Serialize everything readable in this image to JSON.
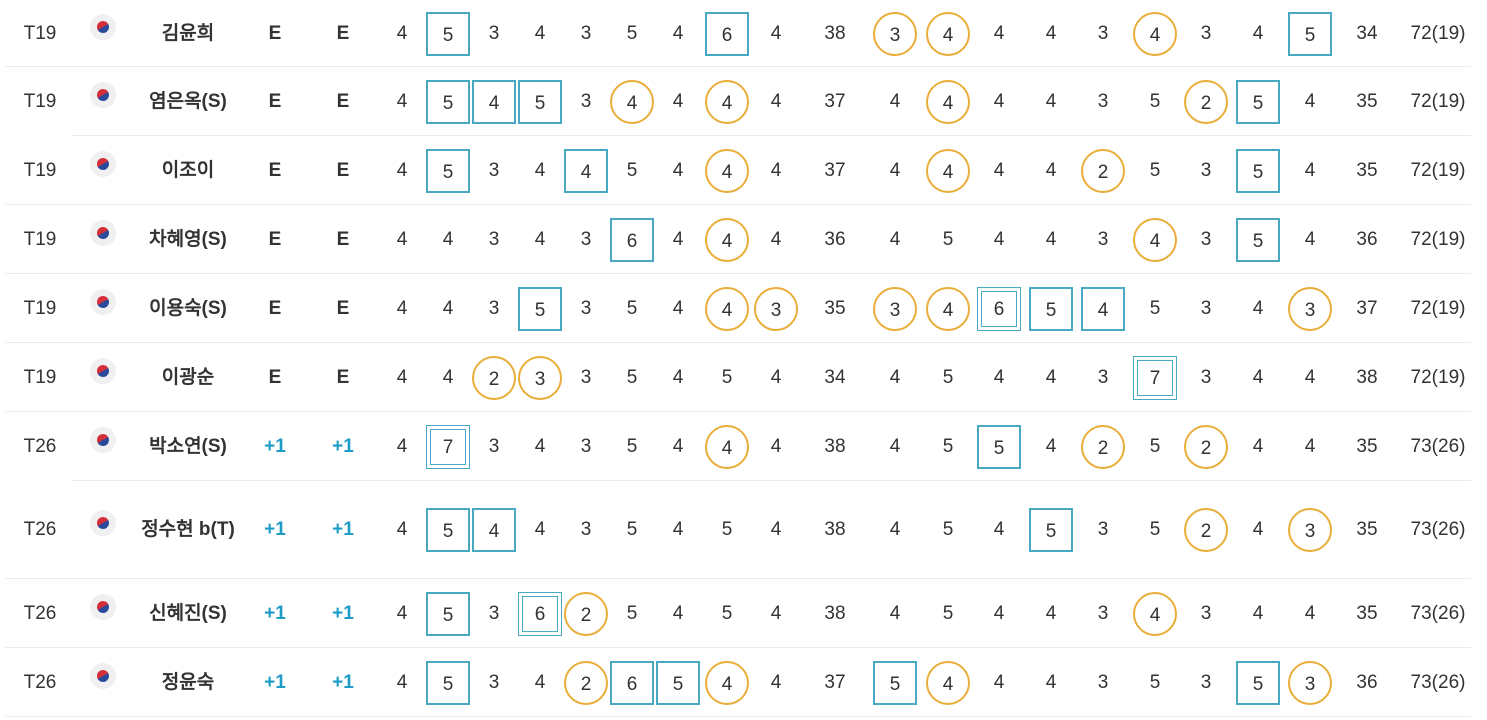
{
  "colors": {
    "bogey_box": "#4aa9c2",
    "birdie_circle": "#e9ae3a",
    "over_par_text": "#1e9bc7"
  },
  "players": [
    {
      "rank": "T19",
      "flag": "korea-flag",
      "name": "김윤희",
      "to_par": "E",
      "today": "E",
      "front": [
        {
          "v": "4"
        },
        {
          "v": "5",
          "m": "bogey"
        },
        {
          "v": "3"
        },
        {
          "v": "4"
        },
        {
          "v": "3"
        },
        {
          "v": "5"
        },
        {
          "v": "4"
        },
        {
          "v": "6",
          "m": "bogey"
        },
        {
          "v": "4"
        }
      ],
      "out": "38",
      "back": [
        {
          "v": "3",
          "m": "birdie"
        },
        {
          "v": "4",
          "m": "birdie"
        },
        {
          "v": "4"
        },
        {
          "v": "4"
        },
        {
          "v": "3"
        },
        {
          "v": "4",
          "m": "birdie"
        },
        {
          "v": "3"
        },
        {
          "v": "4"
        },
        {
          "v": "5",
          "m": "bogey"
        }
      ],
      "in": "34",
      "total": "72(19)"
    },
    {
      "rank": "T19",
      "flag": "korea-flag",
      "name": "염은옥(S)",
      "to_par": "E",
      "today": "E",
      "front": [
        {
          "v": "4"
        },
        {
          "v": "5",
          "m": "bogey"
        },
        {
          "v": "4",
          "m": "bogey"
        },
        {
          "v": "5",
          "m": "bogey"
        },
        {
          "v": "3"
        },
        {
          "v": "4",
          "m": "birdie"
        },
        {
          "v": "4"
        },
        {
          "v": "4",
          "m": "birdie"
        },
        {
          "v": "4"
        }
      ],
      "out": "37",
      "back": [
        {
          "v": "4"
        },
        {
          "v": "4",
          "m": "birdie"
        },
        {
          "v": "4"
        },
        {
          "v": "4"
        },
        {
          "v": "3"
        },
        {
          "v": "5"
        },
        {
          "v": "2",
          "m": "birdie"
        },
        {
          "v": "5",
          "m": "bogey"
        },
        {
          "v": "4"
        }
      ],
      "in": "35",
      "total": "72(19)"
    },
    {
      "rank": "T19",
      "flag": "korea-flag",
      "name": "이조이",
      "to_par": "E",
      "today": "E",
      "front": [
        {
          "v": "4"
        },
        {
          "v": "5",
          "m": "bogey"
        },
        {
          "v": "3"
        },
        {
          "v": "4"
        },
        {
          "v": "4",
          "m": "bogey"
        },
        {
          "v": "5"
        },
        {
          "v": "4"
        },
        {
          "v": "4",
          "m": "birdie"
        },
        {
          "v": "4"
        }
      ],
      "out": "37",
      "back": [
        {
          "v": "4"
        },
        {
          "v": "4",
          "m": "birdie"
        },
        {
          "v": "4"
        },
        {
          "v": "4"
        },
        {
          "v": "2",
          "m": "birdie"
        },
        {
          "v": "5"
        },
        {
          "v": "3"
        },
        {
          "v": "5",
          "m": "bogey"
        },
        {
          "v": "4"
        }
      ],
      "in": "35",
      "total": "72(19)"
    },
    {
      "rank": "T19",
      "flag": "korea-flag",
      "name": "차혜영(S)",
      "to_par": "E",
      "today": "E",
      "front": [
        {
          "v": "4"
        },
        {
          "v": "4"
        },
        {
          "v": "3"
        },
        {
          "v": "4"
        },
        {
          "v": "3"
        },
        {
          "v": "6",
          "m": "bogey"
        },
        {
          "v": "4"
        },
        {
          "v": "4",
          "m": "birdie"
        },
        {
          "v": "4"
        }
      ],
      "out": "36",
      "back": [
        {
          "v": "4"
        },
        {
          "v": "5"
        },
        {
          "v": "4"
        },
        {
          "v": "4"
        },
        {
          "v": "3"
        },
        {
          "v": "4",
          "m": "birdie"
        },
        {
          "v": "3"
        },
        {
          "v": "5",
          "m": "bogey"
        },
        {
          "v": "4"
        }
      ],
      "in": "36",
      "total": "72(19)"
    },
    {
      "rank": "T19",
      "flag": "korea-flag",
      "name": "이용숙(S)",
      "to_par": "E",
      "today": "E",
      "front": [
        {
          "v": "4"
        },
        {
          "v": "4"
        },
        {
          "v": "3"
        },
        {
          "v": "5",
          "m": "bogey"
        },
        {
          "v": "3"
        },
        {
          "v": "5"
        },
        {
          "v": "4"
        },
        {
          "v": "4",
          "m": "birdie"
        },
        {
          "v": "3",
          "m": "birdie"
        }
      ],
      "out": "35",
      "back": [
        {
          "v": "3",
          "m": "birdie"
        },
        {
          "v": "4",
          "m": "birdie"
        },
        {
          "v": "6",
          "m": "double"
        },
        {
          "v": "5",
          "m": "bogey"
        },
        {
          "v": "4",
          "m": "bogey"
        },
        {
          "v": "5"
        },
        {
          "v": "3"
        },
        {
          "v": "4"
        },
        {
          "v": "3",
          "m": "birdie"
        }
      ],
      "in": "37",
      "total": "72(19)"
    },
    {
      "rank": "T19",
      "flag": "korea-flag",
      "name": "이광순",
      "to_par": "E",
      "today": "E",
      "front": [
        {
          "v": "4"
        },
        {
          "v": "4"
        },
        {
          "v": "2",
          "m": "birdie"
        },
        {
          "v": "3",
          "m": "birdie"
        },
        {
          "v": "3"
        },
        {
          "v": "5"
        },
        {
          "v": "4"
        },
        {
          "v": "5"
        },
        {
          "v": "4"
        }
      ],
      "out": "34",
      "back": [
        {
          "v": "4"
        },
        {
          "v": "5"
        },
        {
          "v": "4"
        },
        {
          "v": "4"
        },
        {
          "v": "3"
        },
        {
          "v": "7",
          "m": "double"
        },
        {
          "v": "3"
        },
        {
          "v": "4"
        },
        {
          "v": "4"
        }
      ],
      "in": "38",
      "total": "72(19)"
    },
    {
      "rank": "T26",
      "flag": "korea-flag",
      "name": "박소연(S)",
      "to_par": "+1",
      "today": "+1",
      "front": [
        {
          "v": "4"
        },
        {
          "v": "7",
          "m": "double"
        },
        {
          "v": "3"
        },
        {
          "v": "4"
        },
        {
          "v": "3"
        },
        {
          "v": "5"
        },
        {
          "v": "4"
        },
        {
          "v": "4",
          "m": "birdie"
        },
        {
          "v": "4"
        }
      ],
      "out": "38",
      "back": [
        {
          "v": "4"
        },
        {
          "v": "5"
        },
        {
          "v": "5",
          "m": "bogey"
        },
        {
          "v": "4"
        },
        {
          "v": "2",
          "m": "birdie"
        },
        {
          "v": "5"
        },
        {
          "v": "2",
          "m": "birdie"
        },
        {
          "v": "4"
        },
        {
          "v": "4"
        }
      ],
      "in": "35",
      "total": "73(26)"
    },
    {
      "rank": "T26",
      "flag": "korea-flag",
      "name": "정수현 b(T)",
      "to_par": "+1",
      "today": "+1",
      "front": [
        {
          "v": "4"
        },
        {
          "v": "5",
          "m": "bogey"
        },
        {
          "v": "4",
          "m": "bogey"
        },
        {
          "v": "4"
        },
        {
          "v": "3"
        },
        {
          "v": "5"
        },
        {
          "v": "4"
        },
        {
          "v": "5"
        },
        {
          "v": "4"
        }
      ],
      "out": "38",
      "back": [
        {
          "v": "4"
        },
        {
          "v": "5"
        },
        {
          "v": "4"
        },
        {
          "v": "5",
          "m": "bogey"
        },
        {
          "v": "3"
        },
        {
          "v": "5"
        },
        {
          "v": "2",
          "m": "birdie"
        },
        {
          "v": "4"
        },
        {
          "v": "3",
          "m": "birdie"
        }
      ],
      "in": "35",
      "total": "73(26)"
    },
    {
      "rank": "T26",
      "flag": "korea-flag",
      "name": "신혜진(S)",
      "to_par": "+1",
      "today": "+1",
      "front": [
        {
          "v": "4"
        },
        {
          "v": "5",
          "m": "bogey"
        },
        {
          "v": "3"
        },
        {
          "v": "6",
          "m": "double"
        },
        {
          "v": "2",
          "m": "birdie"
        },
        {
          "v": "5"
        },
        {
          "v": "4"
        },
        {
          "v": "5"
        },
        {
          "v": "4"
        }
      ],
      "out": "38",
      "back": [
        {
          "v": "4"
        },
        {
          "v": "5"
        },
        {
          "v": "4"
        },
        {
          "v": "4"
        },
        {
          "v": "3"
        },
        {
          "v": "4",
          "m": "birdie"
        },
        {
          "v": "3"
        },
        {
          "v": "4"
        },
        {
          "v": "4"
        }
      ],
      "in": "35",
      "total": "73(26)"
    },
    {
      "rank": "T26",
      "flag": "korea-flag",
      "name": "정윤숙",
      "to_par": "+1",
      "today": "+1",
      "front": [
        {
          "v": "4"
        },
        {
          "v": "5",
          "m": "bogey"
        },
        {
          "v": "3"
        },
        {
          "v": "4"
        },
        {
          "v": "2",
          "m": "birdie"
        },
        {
          "v": "6",
          "m": "bogey"
        },
        {
          "v": "5",
          "m": "bogey"
        },
        {
          "v": "4",
          "m": "birdie"
        },
        {
          "v": "4"
        }
      ],
      "out": "37",
      "back": [
        {
          "v": "5",
          "m": "bogey"
        },
        {
          "v": "4",
          "m": "birdie"
        },
        {
          "v": "4"
        },
        {
          "v": "4"
        },
        {
          "v": "3"
        },
        {
          "v": "5"
        },
        {
          "v": "3"
        },
        {
          "v": "5",
          "m": "bogey"
        },
        {
          "v": "3",
          "m": "birdie"
        }
      ],
      "in": "36",
      "total": "73(26)"
    }
  ]
}
